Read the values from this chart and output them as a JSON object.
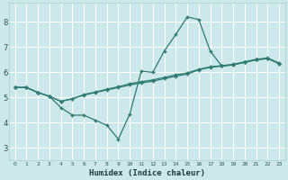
{
  "xlabel": "Humidex (Indice chaleur)",
  "bg_color": "#cce8ea",
  "grid_color": "#ffffff",
  "line_color": "#2d7a6e",
  "x_ticks": [
    0,
    1,
    2,
    3,
    4,
    5,
    6,
    7,
    8,
    9,
    10,
    11,
    12,
    13,
    14,
    15,
    16,
    17,
    18,
    19,
    20,
    21,
    22,
    23
  ],
  "xlim": [
    -0.5,
    23.5
  ],
  "ylim": [
    2.5,
    8.75
  ],
  "yticks": [
    3,
    4,
    5,
    6,
    7,
    8
  ],
  "series1_x": [
    0,
    1,
    2,
    3,
    4,
    5,
    6,
    7,
    8,
    9,
    10,
    11,
    12,
    13,
    14,
    15,
    16,
    17,
    18,
    19,
    20,
    21,
    22,
    23
  ],
  "series1_y": [
    5.4,
    5.4,
    5.2,
    5.05,
    4.6,
    4.3,
    4.3,
    4.1,
    3.9,
    3.35,
    4.35,
    6.05,
    6.0,
    6.85,
    7.5,
    8.2,
    8.1,
    6.85,
    6.25,
    6.3,
    6.4,
    6.5,
    6.55,
    6.35
  ],
  "series2_x": [
    0,
    1,
    2,
    3,
    4,
    5,
    6,
    7,
    8,
    9,
    10,
    11,
    12,
    13,
    14,
    15,
    16,
    17,
    18,
    19,
    20,
    21,
    22,
    23
  ],
  "series2_y": [
    5.4,
    5.4,
    5.2,
    5.05,
    4.85,
    4.95,
    5.1,
    5.2,
    5.3,
    5.4,
    5.5,
    5.58,
    5.65,
    5.75,
    5.85,
    5.93,
    6.1,
    6.2,
    6.25,
    6.3,
    6.4,
    6.5,
    6.55,
    6.35
  ],
  "series3_x": [
    0,
    1,
    2,
    3,
    4,
    5,
    6,
    7,
    8,
    9,
    10,
    11,
    12,
    13,
    14,
    15,
    16,
    17,
    18,
    19,
    20,
    21,
    22,
    23
  ],
  "series3_y": [
    5.4,
    5.4,
    5.2,
    5.05,
    4.85,
    4.95,
    5.12,
    5.22,
    5.33,
    5.43,
    5.55,
    5.63,
    5.7,
    5.8,
    5.9,
    5.98,
    6.12,
    6.22,
    6.27,
    6.32,
    6.42,
    6.52,
    6.57,
    6.37
  ]
}
